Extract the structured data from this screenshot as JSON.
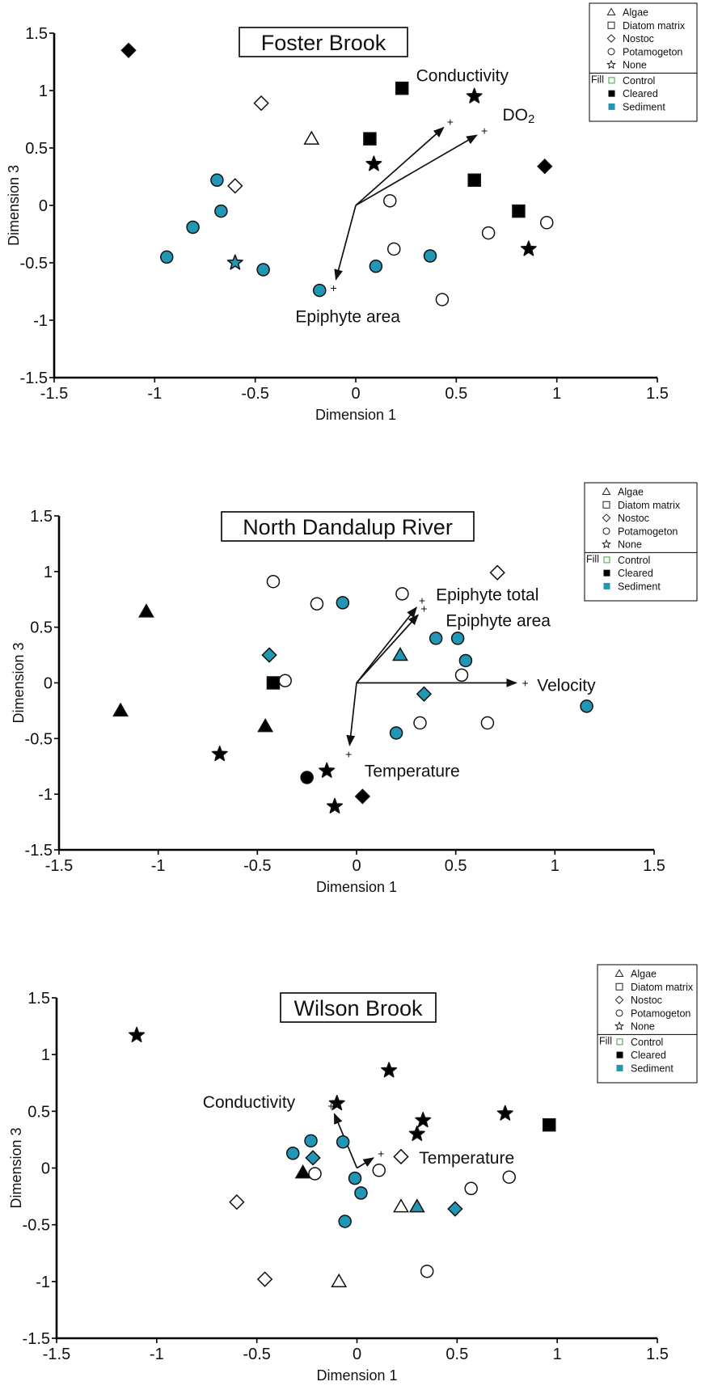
{
  "colors": {
    "sediment": "#2196b5",
    "cleared": "#000000",
    "control": "#ffffff",
    "control_legend": "#3aa535",
    "stroke": "#111111"
  },
  "chart_data": [
    {
      "type": "scatter",
      "title": "Foster Brook",
      "xlabel": "Dimension 1",
      "ylabel": "Dimension 3",
      "xlim": [
        -1.5,
        1.5
      ],
      "ylim": [
        -1.5,
        1.5
      ],
      "xticks": [
        "-1.5",
        "-1",
        "-0.5",
        "0",
        "0.5",
        "1",
        "1.5"
      ],
      "yticks": [
        "1.5",
        "1",
        "0.5",
        "0",
        "-0.5",
        "-1",
        "-1.5"
      ],
      "legend": {
        "substrates": [
          {
            "label": "Algae",
            "marker": "triangle"
          },
          {
            "label": "Diatom matrix",
            "marker": "square"
          },
          {
            "label": "Nostoc",
            "marker": "diamond"
          },
          {
            "label": "Potamogeton",
            "marker": "circle"
          },
          {
            "label": "None",
            "marker": "star"
          }
        ],
        "fill_label": "Fill",
        "fills": [
          {
            "label": "Control",
            "fill": "control"
          },
          {
            "label": "Cleared",
            "fill": "cleared"
          },
          {
            "label": "Sediment",
            "fill": "sediment"
          }
        ]
      },
      "vectors": [
        {
          "label": "Conductivity",
          "x": 0.47,
          "y": 0.73,
          "label_at": [
            0.3,
            1.13
          ]
        },
        {
          "label": "DO2",
          "x": 0.64,
          "y": 0.65,
          "label_at": [
            0.73,
            0.79
          ]
        },
        {
          "label": "Epiphyte area",
          "x": -0.11,
          "y": -0.72,
          "label_at": [
            -0.3,
            -0.97
          ]
        }
      ],
      "points": [
        {
          "x": -1.13,
          "y": 1.35,
          "marker": "diamond",
          "fill": "cleared"
        },
        {
          "x": -0.47,
          "y": 0.89,
          "marker": "diamond",
          "fill": "control"
        },
        {
          "x": -0.22,
          "y": 0.58,
          "marker": "triangle",
          "fill": "control"
        },
        {
          "x": 0.23,
          "y": 1.02,
          "marker": "square",
          "fill": "cleared"
        },
        {
          "x": 0.59,
          "y": 0.95,
          "marker": "star",
          "fill": "cleared"
        },
        {
          "x": 0.07,
          "y": 0.58,
          "marker": "square",
          "fill": "cleared"
        },
        {
          "x": 0.09,
          "y": 0.36,
          "marker": "star",
          "fill": "cleared"
        },
        {
          "x": 0.94,
          "y": 0.34,
          "marker": "diamond",
          "fill": "cleared"
        },
        {
          "x": 0.59,
          "y": 0.22,
          "marker": "square",
          "fill": "cleared"
        },
        {
          "x": 0.81,
          "y": -0.05,
          "marker": "square",
          "fill": "cleared"
        },
        {
          "x": 0.86,
          "y": -0.38,
          "marker": "star",
          "fill": "cleared"
        },
        {
          "x": -0.69,
          "y": 0.22,
          "marker": "circle",
          "fill": "sediment"
        },
        {
          "x": -0.6,
          "y": 0.17,
          "marker": "diamond",
          "fill": "control"
        },
        {
          "x": -0.67,
          "y": -0.05,
          "marker": "circle",
          "fill": "sediment"
        },
        {
          "x": -0.81,
          "y": -0.19,
          "marker": "circle",
          "fill": "sediment"
        },
        {
          "x": -0.94,
          "y": -0.45,
          "marker": "circle",
          "fill": "sediment"
        },
        {
          "x": -0.6,
          "y": -0.5,
          "marker": "star",
          "fill": "sediment"
        },
        {
          "x": -0.46,
          "y": -0.56,
          "marker": "circle",
          "fill": "sediment"
        },
        {
          "x": -0.18,
          "y": -0.74,
          "marker": "circle",
          "fill": "sediment"
        },
        {
          "x": 0.1,
          "y": -0.53,
          "marker": "circle",
          "fill": "sediment"
        },
        {
          "x": 0.37,
          "y": -0.44,
          "marker": "circle",
          "fill": "sediment"
        },
        {
          "x": 0.17,
          "y": 0.04,
          "marker": "circle",
          "fill": "control"
        },
        {
          "x": 0.19,
          "y": -0.38,
          "marker": "circle",
          "fill": "control"
        },
        {
          "x": 0.43,
          "y": -0.82,
          "marker": "circle",
          "fill": "control"
        },
        {
          "x": 0.66,
          "y": -0.24,
          "marker": "circle",
          "fill": "control"
        },
        {
          "x": 0.95,
          "y": -0.15,
          "marker": "circle",
          "fill": "control"
        }
      ]
    },
    {
      "type": "scatter",
      "title": "North Dandalup River",
      "xlabel": "Dimension 1",
      "ylabel": "Dimension 3",
      "xlim": [
        -1.5,
        1.5
      ],
      "ylim": [
        -1.5,
        1.5
      ],
      "xticks": [
        "-1.5",
        "-1",
        "-0.5",
        "0",
        "0.5",
        "1",
        "1.5"
      ],
      "yticks": [
        "1.5",
        "1",
        "0.5",
        "0",
        "-0.5",
        "-1",
        "-1.5"
      ],
      "legend": {
        "substrates": [
          {
            "label": "Algae",
            "marker": "triangle"
          },
          {
            "label": "Diatom matrix",
            "marker": "square"
          },
          {
            "label": "Nostoc",
            "marker": "diamond"
          },
          {
            "label": "Potamogeton",
            "marker": "circle"
          },
          {
            "label": "None",
            "marker": "star"
          }
        ],
        "fill_label": "Fill",
        "fills": [
          {
            "label": "Control",
            "fill": "control"
          },
          {
            "label": "Cleared",
            "fill": "cleared"
          },
          {
            "label": "Sediment",
            "fill": "sediment"
          }
        ]
      },
      "vectors": [
        {
          "label": "Epiphyte total",
          "x": 0.33,
          "y": 0.74,
          "label_at": [
            0.4,
            0.79
          ]
        },
        {
          "label": "Epiphyte area",
          "x": 0.34,
          "y": 0.67,
          "label_at": [
            0.45,
            0.56
          ]
        },
        {
          "label": "Velocity",
          "x": 0.85,
          "y": 0.0,
          "label_at": [
            0.91,
            -0.02
          ]
        },
        {
          "label": "Temperature",
          "x": -0.04,
          "y": -0.64,
          "label_at": [
            0.04,
            -0.79
          ]
        }
      ],
      "points": [
        {
          "x": -1.06,
          "y": 0.64,
          "marker": "triangle",
          "fill": "cleared"
        },
        {
          "x": -1.19,
          "y": -0.25,
          "marker": "triangle",
          "fill": "cleared"
        },
        {
          "x": -0.46,
          "y": -0.39,
          "marker": "triangle",
          "fill": "cleared"
        },
        {
          "x": -0.69,
          "y": -0.64,
          "marker": "star",
          "fill": "cleared"
        },
        {
          "x": -0.42,
          "y": 0.0,
          "marker": "square",
          "fill": "cleared"
        },
        {
          "x": -0.25,
          "y": -0.85,
          "marker": "circle",
          "fill": "cleared"
        },
        {
          "x": -0.15,
          "y": -0.79,
          "marker": "star",
          "fill": "cleared"
        },
        {
          "x": -0.11,
          "y": -1.11,
          "marker": "star",
          "fill": "cleared"
        },
        {
          "x": 0.03,
          "y": -1.02,
          "marker": "diamond",
          "fill": "cleared"
        },
        {
          "x": -0.44,
          "y": 0.25,
          "marker": "diamond",
          "fill": "sediment"
        },
        {
          "x": -0.42,
          "y": 0.91,
          "marker": "circle",
          "fill": "control"
        },
        {
          "x": -0.2,
          "y": 0.71,
          "marker": "circle",
          "fill": "control"
        },
        {
          "x": -0.07,
          "y": 0.72,
          "marker": "circle",
          "fill": "sediment"
        },
        {
          "x": -0.36,
          "y": 0.02,
          "marker": "circle",
          "fill": "control"
        },
        {
          "x": 0.23,
          "y": 0.8,
          "marker": "circle",
          "fill": "control"
        },
        {
          "x": 0.71,
          "y": 0.99,
          "marker": "diamond",
          "fill": "control"
        },
        {
          "x": 0.22,
          "y": 0.25,
          "marker": "triangle",
          "fill": "sediment"
        },
        {
          "x": 0.4,
          "y": 0.4,
          "marker": "circle",
          "fill": "sediment"
        },
        {
          "x": 0.51,
          "y": 0.4,
          "marker": "circle",
          "fill": "sediment"
        },
        {
          "x": 0.55,
          "y": 0.2,
          "marker": "circle",
          "fill": "sediment"
        },
        {
          "x": 0.53,
          "y": 0.07,
          "marker": "circle",
          "fill": "control"
        },
        {
          "x": 0.34,
          "y": -0.1,
          "marker": "diamond",
          "fill": "sediment"
        },
        {
          "x": 0.32,
          "y": -0.36,
          "marker": "circle",
          "fill": "control"
        },
        {
          "x": 0.2,
          "y": -0.45,
          "marker": "circle",
          "fill": "sediment"
        },
        {
          "x": 0.66,
          "y": -0.36,
          "marker": "circle",
          "fill": "control"
        },
        {
          "x": 1.16,
          "y": -0.21,
          "marker": "circle",
          "fill": "sediment"
        }
      ]
    },
    {
      "type": "scatter",
      "title": "Wilson Brook",
      "xlabel": "Dimension 1",
      "ylabel": "Dimension 3",
      "xlim": [
        -1.5,
        1.5
      ],
      "ylim": [
        -1.5,
        1.5
      ],
      "xticks": [
        "-1.5",
        "-1",
        "-0.5",
        "0",
        "0.5",
        "1",
        "1.5"
      ],
      "yticks": [
        "1.5",
        "1",
        "0.5",
        "0",
        "-0.5",
        "-1",
        "-1.5"
      ],
      "legend": {
        "substrates": [
          {
            "label": "Algae",
            "marker": "triangle"
          },
          {
            "label": "Diatom matrix",
            "marker": "square"
          },
          {
            "label": "Nostoc",
            "marker": "diamond"
          },
          {
            "label": "Potamogeton",
            "marker": "circle"
          },
          {
            "label": "None",
            "marker": "star"
          }
        ],
        "fill_label": "Fill",
        "fills": [
          {
            "label": "Control",
            "fill": "control"
          },
          {
            "label": "Cleared",
            "fill": "cleared"
          },
          {
            "label": "Sediment",
            "fill": "sediment"
          }
        ]
      },
      "vectors": [
        {
          "label": "Conductivity",
          "x": -0.13,
          "y": 0.55,
          "label_at": [
            -0.77,
            0.58
          ]
        },
        {
          "label": "Temperature",
          "x": 0.12,
          "y": 0.13,
          "label_at": [
            0.31,
            0.09
          ]
        }
      ],
      "points": [
        {
          "x": -1.1,
          "y": 1.17,
          "marker": "star",
          "fill": "cleared"
        },
        {
          "x": 0.16,
          "y": 0.86,
          "marker": "star",
          "fill": "cleared"
        },
        {
          "x": -0.1,
          "y": 0.57,
          "marker": "star",
          "fill": "cleared"
        },
        {
          "x": 0.33,
          "y": 0.42,
          "marker": "star",
          "fill": "cleared"
        },
        {
          "x": 0.3,
          "y": 0.3,
          "marker": "star",
          "fill": "cleared"
        },
        {
          "x": 0.74,
          "y": 0.48,
          "marker": "star",
          "fill": "cleared"
        },
        {
          "x": 0.96,
          "y": 0.38,
          "marker": "square",
          "fill": "cleared"
        },
        {
          "x": -0.27,
          "y": -0.04,
          "marker": "triangle",
          "fill": "cleared"
        },
        {
          "x": -0.23,
          "y": 0.24,
          "marker": "circle",
          "fill": "sediment"
        },
        {
          "x": -0.32,
          "y": 0.13,
          "marker": "circle",
          "fill": "sediment"
        },
        {
          "x": -0.22,
          "y": 0.09,
          "marker": "diamond",
          "fill": "sediment"
        },
        {
          "x": -0.07,
          "y": 0.23,
          "marker": "circle",
          "fill": "sediment"
        },
        {
          "x": -0.21,
          "y": -0.05,
          "marker": "circle",
          "fill": "control"
        },
        {
          "x": -0.01,
          "y": -0.09,
          "marker": "circle",
          "fill": "sediment"
        },
        {
          "x": 0.02,
          "y": -0.22,
          "marker": "circle",
          "fill": "sediment"
        },
        {
          "x": -0.06,
          "y": -0.47,
          "marker": "circle",
          "fill": "sediment"
        },
        {
          "x": 0.11,
          "y": -0.02,
          "marker": "circle",
          "fill": "control"
        },
        {
          "x": 0.22,
          "y": 0.1,
          "marker": "diamond",
          "fill": "control"
        },
        {
          "x": 0.22,
          "y": -0.34,
          "marker": "triangle",
          "fill": "control"
        },
        {
          "x": 0.3,
          "y": -0.34,
          "marker": "triangle",
          "fill": "sediment"
        },
        {
          "x": 0.49,
          "y": -0.36,
          "marker": "diamond",
          "fill": "sediment"
        },
        {
          "x": 0.57,
          "y": -0.18,
          "marker": "circle",
          "fill": "control"
        },
        {
          "x": 0.76,
          "y": -0.08,
          "marker": "circle",
          "fill": "control"
        },
        {
          "x": -0.6,
          "y": -0.3,
          "marker": "diamond",
          "fill": "control"
        },
        {
          "x": -0.46,
          "y": -0.98,
          "marker": "diamond",
          "fill": "control"
        },
        {
          "x": -0.09,
          "y": -1.0,
          "marker": "triangle",
          "fill": "control"
        },
        {
          "x": 0.35,
          "y": -0.91,
          "marker": "circle",
          "fill": "control"
        }
      ]
    }
  ]
}
